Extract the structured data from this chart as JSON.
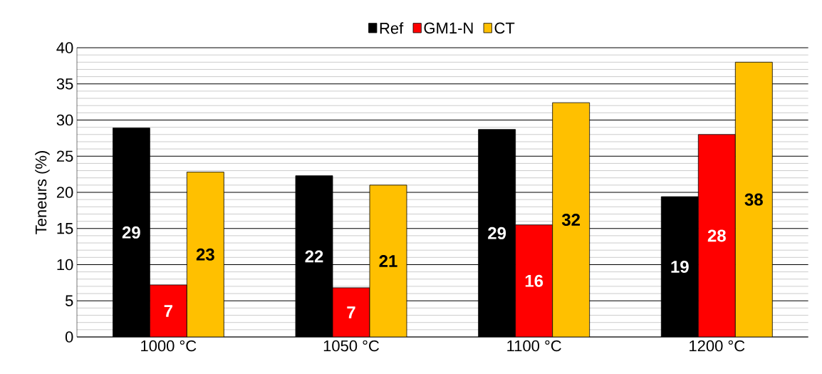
{
  "chart_data": {
    "type": "bar",
    "ylabel": "Teneurs (%)",
    "categories": [
      "1000 °C",
      "1050 °C",
      "1100 °C",
      "1200 °C"
    ],
    "series": [
      {
        "name": "Ref",
        "color": "#000000",
        "values": [
          28.9,
          22.3,
          28.7,
          19.4
        ],
        "value_labels": [
          "29",
          "22",
          "29",
          "19"
        ]
      },
      {
        "name": "GM1-N",
        "color": "#ff0000",
        "values": [
          7.2,
          6.8,
          15.5,
          28.0
        ],
        "value_labels": [
          "7",
          "7",
          "16",
          "28"
        ]
      },
      {
        "name": "CT",
        "color": "#ffc000",
        "values": [
          22.8,
          21.0,
          32.4,
          38.0
        ],
        "value_labels": [
          "23",
          "21",
          "32",
          "38"
        ]
      }
    ],
    "ylim": [
      0,
      40
    ],
    "yticks": [
      0,
      5,
      10,
      15,
      20,
      25,
      30,
      35,
      40
    ],
    "grid": "y",
    "legend": "top"
  }
}
